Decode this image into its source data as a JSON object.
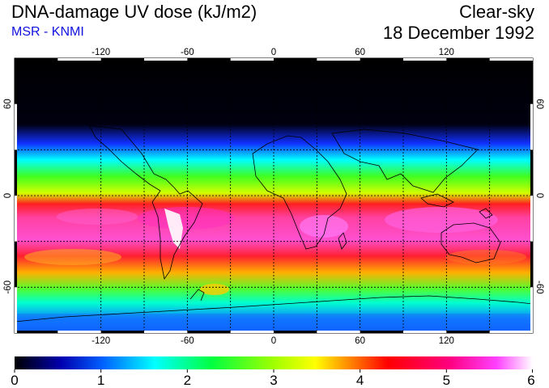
{
  "header": {
    "title": "DNA-damage UV dose (kJ/m2)",
    "subtitle": "MSR - KNMI",
    "condition": "Clear-sky",
    "date": "18 December 1992"
  },
  "map": {
    "lon_ticks": [
      "-120",
      "-60",
      "0",
      "60",
      "120"
    ],
    "lat_ticks": [
      "60",
      "0",
      "-60"
    ]
  },
  "colorbar": {
    "labels": [
      "0",
      "1",
      "2",
      "3",
      "4",
      "5",
      "6"
    ],
    "colors": [
      "#000000",
      "#0000cc",
      "#0080ff",
      "#00ffff",
      "#00ff40",
      "#80ff00",
      "#ffff00",
      "#ff8000",
      "#ff0000",
      "#ff0080",
      "#ff40ff",
      "#ffffff"
    ]
  }
}
